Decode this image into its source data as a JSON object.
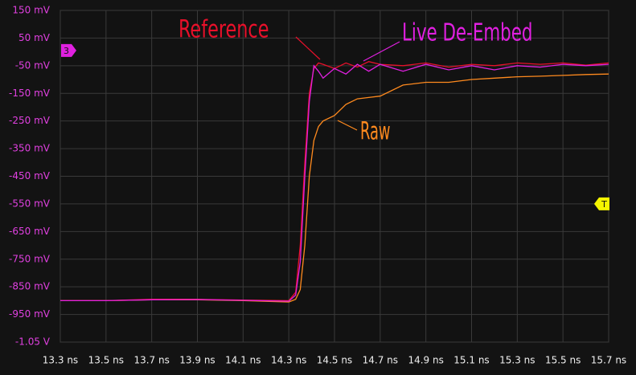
{
  "chart_data": {
    "type": "line",
    "x": [
      13.3,
      13.5,
      13.7,
      13.9,
      14.1,
      14.3,
      14.33,
      14.35,
      14.37,
      14.39,
      14.41,
      14.43,
      14.45,
      14.5,
      14.55,
      14.6,
      14.65,
      14.7,
      14.8,
      14.9,
      15.0,
      15.1,
      15.2,
      15.3,
      15.4,
      15.5,
      15.6,
      15.7
    ],
    "series": [
      {
        "name": "Raw",
        "color": "#ff8a1e",
        "values": [
          -900,
          -900,
          -897,
          -897,
          -900,
          -905,
          -895,
          -860,
          -700,
          -450,
          -320,
          -270,
          -250,
          -230,
          -190,
          -170,
          -165,
          -160,
          -120,
          -110,
          -110,
          -100,
          -95,
          -90,
          -88,
          -85,
          -82,
          -80
        ]
      },
      {
        "name": "Reference",
        "color": "#e8102a",
        "values": [
          -900,
          -900,
          -895,
          -895,
          -898,
          -900,
          -870,
          -700,
          -400,
          -150,
          -60,
          -40,
          -45,
          -60,
          -40,
          -55,
          -35,
          -45,
          -50,
          -40,
          -55,
          -45,
          -50,
          -40,
          -45,
          -40,
          -48,
          -40
        ]
      },
      {
        "name": "Live De-Embed",
        "color": "#e020e0",
        "values": [
          -900,
          -900,
          -897,
          -896,
          -899,
          -902,
          -880,
          -760,
          -450,
          -180,
          -50,
          -70,
          -95,
          -60,
          -80,
          -45,
          -70,
          -45,
          -70,
          -45,
          -65,
          -50,
          -65,
          -50,
          -55,
          -45,
          -50,
          -45
        ]
      }
    ],
    "annotations": [
      {
        "text": "Reference",
        "color": "#e8102a"
      },
      {
        "text": "Live De-Embed",
        "color": "#e020e0"
      },
      {
        "text": "Raw",
        "color": "#ff8a1e"
      }
    ],
    "markers": [
      {
        "label": "3",
        "value": 5,
        "color": "#e020e0"
      },
      {
        "label": "T",
        "value": -550,
        "color": "#f5f500"
      }
    ],
    "xlim": [
      13.3,
      15.7
    ],
    "ylim": [
      -1050,
      150
    ],
    "xticks": [
      {
        "value": 13.3,
        "label": "13.3 ns"
      },
      {
        "value": 13.5,
        "label": "13.5 ns"
      },
      {
        "value": 13.7,
        "label": "13.7 ns"
      },
      {
        "value": 13.9,
        "label": "13.9 ns"
      },
      {
        "value": 14.1,
        "label": "14.1 ns"
      },
      {
        "value": 14.3,
        "label": "14.3 ns"
      },
      {
        "value": 14.5,
        "label": "14.5 ns"
      },
      {
        "value": 14.7,
        "label": "14.7 ns"
      },
      {
        "value": 14.9,
        "label": "14.9 ns"
      },
      {
        "value": 15.1,
        "label": "15.1 ns"
      },
      {
        "value": 15.3,
        "label": "15.3 ns"
      },
      {
        "value": 15.5,
        "label": "15.5 ns"
      },
      {
        "value": 15.7,
        "label": "15.7 ns"
      }
    ],
    "yticks": [
      {
        "value": 150,
        "label": "150 mV"
      },
      {
        "value": 50,
        "label": "50 mV"
      },
      {
        "value": -50,
        "label": "-50 mV"
      },
      {
        "value": -150,
        "label": "-150 mV"
      },
      {
        "value": -250,
        "label": "-250 mV"
      },
      {
        "value": -350,
        "label": "-350 mV"
      },
      {
        "value": -450,
        "label": "-450 mV"
      },
      {
        "value": -550,
        "label": "-550 mV"
      },
      {
        "value": -650,
        "label": "-650 mV"
      },
      {
        "value": -750,
        "label": "-750 mV"
      },
      {
        "value": -850,
        "label": "-850 mV"
      },
      {
        "value": -950,
        "label": "-950 mV"
      },
      {
        "value": -1050,
        "label": "-1.05 V"
      }
    ],
    "grid": true
  }
}
